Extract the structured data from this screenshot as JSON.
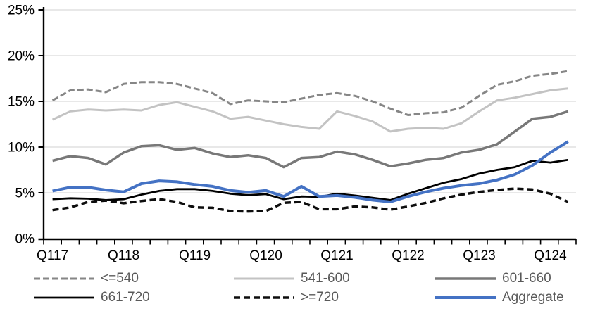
{
  "chart_data": {
    "type": "line",
    "title": "",
    "grid": "horizontal",
    "grid_color": "#d9d9d9",
    "axis_color": "#000000",
    "label_color": "#000000",
    "legend_text_color": "#595959",
    "legend_position": "bottom",
    "y_axis": {
      "tick_labels": [
        "0%",
        "5%",
        "10%",
        "15%",
        "20%",
        "25%"
      ],
      "ylim": [
        0,
        25
      ],
      "unit": "%"
    },
    "x_axis": {
      "tick_labels": [
        "Q117",
        "Q118",
        "Q119",
        "Q120",
        "Q121",
        "Q122",
        "Q123",
        "Q124"
      ],
      "points_per_label": 4,
      "n_points": 30
    },
    "series": [
      {
        "name": "<=540",
        "color": "#868686",
        "style": "dashed",
        "dash": "9 4",
        "width": 3,
        "values": [
          15.1,
          16.2,
          16.3,
          16.0,
          16.9,
          17.1,
          17.1,
          16.9,
          16.4,
          15.9,
          14.7,
          15.1,
          15.0,
          14.9,
          15.3,
          15.7,
          15.9,
          15.6,
          15.0,
          14.2,
          13.5,
          13.7,
          13.8,
          14.3,
          15.6,
          16.8,
          17.2,
          17.8,
          18.0,
          18.3
        ]
      },
      {
        "name": "541-600",
        "color": "#c3c3c3",
        "style": "solid",
        "dash": "",
        "width": 3,
        "values": [
          13.0,
          13.9,
          14.1,
          14.0,
          14.1,
          14.0,
          14.6,
          14.9,
          14.4,
          13.9,
          13.1,
          13.3,
          12.9,
          12.5,
          12.2,
          12.0,
          13.9,
          13.4,
          12.8,
          11.7,
          12.0,
          12.1,
          12.0,
          12.6,
          13.9,
          15.1,
          15.4,
          15.8,
          16.2,
          16.4
        ]
      },
      {
        "name": "601-660",
        "color": "#787878",
        "style": "solid",
        "dash": "",
        "width": 3.5,
        "values": [
          8.5,
          9.0,
          8.8,
          8.1,
          9.4,
          10.1,
          10.2,
          9.7,
          9.9,
          9.3,
          8.9,
          9.1,
          8.8,
          7.8,
          8.8,
          8.9,
          9.5,
          9.2,
          8.6,
          7.9,
          8.2,
          8.6,
          8.8,
          9.4,
          9.7,
          10.3,
          11.7,
          13.1,
          13.3,
          13.9
        ]
      },
      {
        "name": "661-720",
        "color": "#000000",
        "style": "solid",
        "dash": "",
        "width": 2.8,
        "values": [
          4.3,
          4.4,
          4.35,
          4.2,
          4.3,
          4.8,
          5.2,
          5.4,
          5.4,
          5.2,
          4.9,
          4.75,
          4.85,
          4.3,
          4.6,
          4.55,
          4.9,
          4.7,
          4.45,
          4.2,
          4.9,
          5.5,
          6.1,
          6.5,
          7.1,
          7.5,
          7.8,
          8.5,
          8.3,
          8.6
        ]
      },
      {
        "name": ">=720",
        "color": "#0d0d0d",
        "style": "dashed",
        "dash": "9 5",
        "width": 3.5,
        "values": [
          3.1,
          3.4,
          4.0,
          4.15,
          3.85,
          4.1,
          4.3,
          4.0,
          3.4,
          3.35,
          3.0,
          2.95,
          3.0,
          3.9,
          4.0,
          3.2,
          3.2,
          3.5,
          3.4,
          3.15,
          3.5,
          3.9,
          4.4,
          4.8,
          5.1,
          5.3,
          5.45,
          5.35,
          4.9,
          4.0
        ]
      },
      {
        "name": "Aggregate",
        "color": "#4472c4",
        "style": "solid",
        "dash": "",
        "width": 4,
        "values": [
          5.2,
          5.6,
          5.6,
          5.3,
          5.1,
          6.0,
          6.3,
          6.2,
          5.9,
          5.7,
          5.25,
          5.05,
          5.25,
          4.6,
          5.7,
          4.6,
          4.7,
          4.5,
          4.2,
          4.0,
          4.6,
          5.1,
          5.5,
          5.8,
          6.0,
          6.4,
          7.0,
          8.0,
          9.4,
          10.6
        ]
      }
    ]
  }
}
